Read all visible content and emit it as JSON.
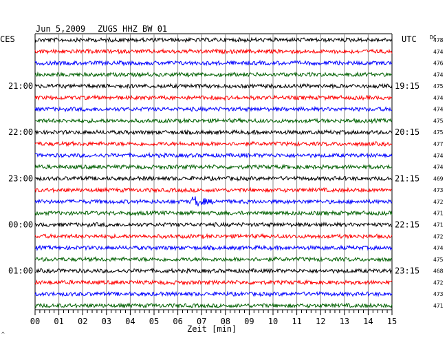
{
  "chart_data": {
    "type": "seismogram",
    "header": {
      "date": "Jun 5,2009",
      "station": "ZUGS HHZ BW 01",
      "left_timezone": "CES",
      "right_timezone": "UTC",
      "dc_label": "DC"
    },
    "xlabel": "Zeit [min]",
    "xlim": [
      0,
      15
    ],
    "xticks": [
      "00",
      "01",
      "02",
      "03",
      "04",
      "05",
      "06",
      "07",
      "08",
      "09",
      "10",
      "11",
      "12",
      "13",
      "14",
      "15"
    ],
    "trace_colors": [
      "#000000",
      "#ff0000",
      "#0000ff",
      "#006000"
    ],
    "traces": [
      {
        "dc": "478",
        "left": "",
        "right": ""
      },
      {
        "dc": "474",
        "left": "",
        "right": ""
      },
      {
        "dc": "476",
        "left": "",
        "right": ""
      },
      {
        "dc": "474",
        "left": "",
        "right": ""
      },
      {
        "dc": "475",
        "left": "21:00",
        "right": "19:15"
      },
      {
        "dc": "474",
        "left": "",
        "right": ""
      },
      {
        "dc": "474",
        "left": "",
        "right": ""
      },
      {
        "dc": "475",
        "left": "",
        "right": ""
      },
      {
        "dc": "475",
        "left": "22:00",
        "right": "20:15"
      },
      {
        "dc": "477",
        "left": "",
        "right": ""
      },
      {
        "dc": "474",
        "left": "",
        "right": ""
      },
      {
        "dc": "474",
        "left": "",
        "right": ""
      },
      {
        "dc": "469",
        "left": "23:00",
        "right": "21:15"
      },
      {
        "dc": "473",
        "left": "",
        "right": ""
      },
      {
        "dc": "472",
        "left": "",
        "right": ""
      },
      {
        "dc": "471",
        "left": "",
        "right": ""
      },
      {
        "dc": "471",
        "left": "00:00",
        "right": "22:15"
      },
      {
        "dc": "472",
        "left": "",
        "right": ""
      },
      {
        "dc": "474",
        "left": "",
        "right": ""
      },
      {
        "dc": "475",
        "left": "",
        "right": ""
      },
      {
        "dc": "468",
        "left": "01:00",
        "right": "23:15"
      },
      {
        "dc": "472",
        "left": "",
        "right": ""
      },
      {
        "dc": "473",
        "left": "",
        "right": ""
      },
      {
        "dc": "471",
        "left": "",
        "right": ""
      }
    ],
    "event": {
      "trace_index": 14,
      "start_min": 6.6,
      "end_min": 8.0
    },
    "footer_mark": "^"
  }
}
